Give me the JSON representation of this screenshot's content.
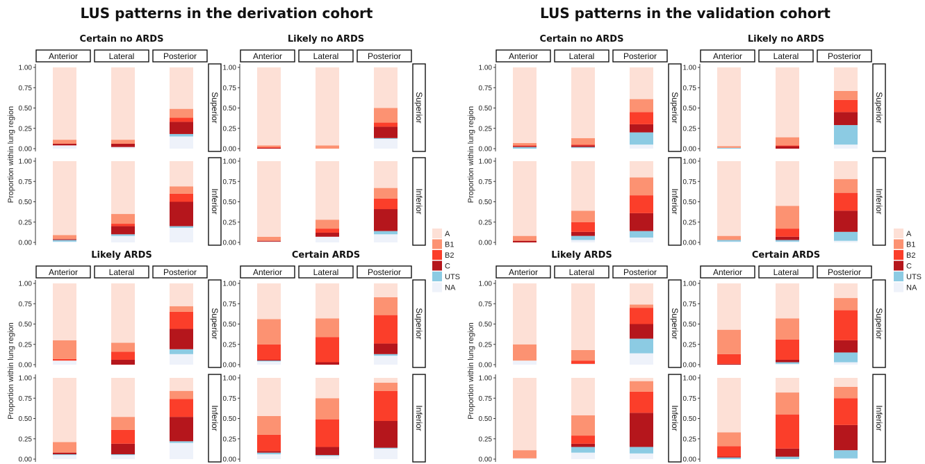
{
  "titles": [
    "LUS patterns in the derivation cohort",
    "LUS patterns in the validation cohort"
  ],
  "chart_data": {
    "type": "bar",
    "stacked": true,
    "y_axis_label": "Proportion within lung region",
    "ylim": [
      0,
      1
    ],
    "y_ticks": [
      "0.00",
      "0.25",
      "0.50",
      "0.75",
      "1.00"
    ],
    "columns": [
      "Anterior",
      "Lateral",
      "Posterior"
    ],
    "rows": [
      "Superior",
      "Inferior"
    ],
    "legend": {
      "position": "right",
      "categories": [
        "A",
        "B1",
        "B2",
        "C",
        "UTS",
        "NA"
      ],
      "colors": [
        "#fde0d6",
        "#fc9272",
        "#fb3e2a",
        "#b5161c",
        "#8ccbe3",
        "#eef2fa"
      ]
    },
    "stack_order_bottom_to_top": [
      "NA",
      "UTS",
      "C",
      "B2",
      "B1",
      "A"
    ],
    "value_note": "values are proportions per category in legend order A, B1, B2, C, UTS, NA",
    "cohorts": [
      {
        "name": "LUS patterns in the derivation cohort",
        "panels": [
          {
            "name": "Certain no ARDS",
            "values": {
              "Superior": {
                "Anterior": [
                  0.89,
                  0.05,
                  0,
                  0.02,
                  0,
                  0.04
                ],
                "Lateral": [
                  0.89,
                  0.05,
                  0,
                  0.04,
                  0,
                  0.02
                ],
                "Posterior": [
                  0.51,
                  0.11,
                  0.05,
                  0.15,
                  0.03,
                  0.15
                ]
              },
              "Inferior": {
                "Anterior": [
                  0.91,
                  0.05,
                  0,
                  0.01,
                  0.02,
                  0.01
                ],
                "Lateral": [
                  0.65,
                  0.12,
                  0.03,
                  0.1,
                  0.02,
                  0.08
                ],
                "Posterior": [
                  0.31,
                  0.09,
                  0.1,
                  0.3,
                  0.02,
                  0.18
                ]
              }
            }
          },
          {
            "name": "Likely no ARDS",
            "values": {
              "Superior": {
                "Anterior": [
                  0.96,
                  0.02,
                  0.01,
                  0.01,
                  0,
                  0
                ],
                "Lateral": [
                  0.96,
                  0.04,
                  0,
                  0,
                  0,
                  0
                ],
                "Posterior": [
                  0.5,
                  0.18,
                  0.05,
                  0.14,
                  0.01,
                  0.12
                ]
              },
              "Inferior": {
                "Anterior": [
                  0.93,
                  0.05,
                  0,
                  0.01,
                  0,
                  0.01
                ],
                "Lateral": [
                  0.72,
                  0.11,
                  0.05,
                  0.05,
                  0,
                  0.07
                ],
                "Posterior": [
                  0.33,
                  0.13,
                  0.13,
                  0.27,
                  0.04,
                  0.1
                ]
              }
            }
          },
          {
            "name": "Likely ARDS",
            "values": {
              "Superior": {
                "Anterior": [
                  0.7,
                  0.23,
                  0.02,
                  0,
                  0,
                  0.05
                ],
                "Lateral": [
                  0.73,
                  0.11,
                  0.1,
                  0.06,
                  0,
                  0
                ],
                "Posterior": [
                  0.28,
                  0.07,
                  0.21,
                  0.25,
                  0.06,
                  0.13
                ]
              },
              "Inferior": {
                "Anterior": [
                  0.79,
                  0.13,
                  0,
                  0.02,
                  0.01,
                  0.05
                ],
                "Lateral": [
                  0.48,
                  0.16,
                  0.17,
                  0.13,
                  0.01,
                  0.05
                ],
                "Posterior": [
                  0.16,
                  0.1,
                  0.22,
                  0.3,
                  0.02,
                  0.2
                ]
              }
            }
          },
          {
            "name": "Certain ARDS",
            "values": {
              "Superior": {
                "Anterior": [
                  0.44,
                  0.31,
                  0.19,
                  0.01,
                  0.01,
                  0.04
                ],
                "Lateral": [
                  0.43,
                  0.23,
                  0.31,
                  0.03,
                  0,
                  0
                ],
                "Posterior": [
                  0.17,
                  0.22,
                  0.35,
                  0.13,
                  0.02,
                  0.11
                ]
              },
              "Inferior": {
                "Anterior": [
                  0.47,
                  0.23,
                  0.2,
                  0.02,
                  0.02,
                  0.06
                ],
                "Lateral": [
                  0.25,
                  0.26,
                  0.34,
                  0.1,
                  0.01,
                  0.04
                ],
                "Posterior": [
                  0.06,
                  0.1,
                  0.37,
                  0.33,
                  0.01,
                  0.13
                ]
              }
            }
          }
        ]
      },
      {
        "name": "LUS patterns in the validation cohort",
        "panels": [
          {
            "name": "Certain no ARDS",
            "values": {
              "Superior": {
                "Anterior": [
                  0.93,
                  0.03,
                  0.01,
                  0.01,
                  0.02,
                  0
                ],
                "Lateral": [
                  0.87,
                  0.08,
                  0.01,
                  0.02,
                  0.01,
                  0.01
                ],
                "Posterior": [
                  0.39,
                  0.16,
                  0.15,
                  0.1,
                  0.15,
                  0.05
                ]
              },
              "Inferior": {
                "Anterior": [
                  0.92,
                  0.06,
                  0,
                  0.02,
                  0,
                  0
                ],
                "Lateral": [
                  0.61,
                  0.14,
                  0.12,
                  0.05,
                  0.05,
                  0.03
                ],
                "Posterior": [
                  0.2,
                  0.22,
                  0.22,
                  0.22,
                  0.08,
                  0.06
                ]
              }
            }
          },
          {
            "name": "Likely no ARDS",
            "values": {
              "Superior": {
                "Anterior": [
                  0.97,
                  0.02,
                  0,
                  0,
                  0.01,
                  0
                ],
                "Lateral": [
                  0.86,
                  0.1,
                  0.01,
                  0.03,
                  0,
                  0
                ],
                "Posterior": [
                  0.29,
                  0.11,
                  0.15,
                  0.16,
                  0.24,
                  0.05
                ]
              },
              "Inferior": {
                "Anterior": [
                  0.92,
                  0.05,
                  0,
                  0,
                  0.02,
                  0.01
                ],
                "Lateral": [
                  0.55,
                  0.28,
                  0.1,
                  0.04,
                  0.02,
                  0.01
                ],
                "Posterior": [
                  0.22,
                  0.17,
                  0.22,
                  0.26,
                  0.11,
                  0.02
                ]
              }
            }
          },
          {
            "name": "Likely ARDS",
            "values": {
              "Superior": {
                "Anterior": [
                  0.75,
                  0.2,
                  0,
                  0,
                  0,
                  0.05
                ],
                "Lateral": [
                  0.82,
                  0.13,
                  0.04,
                  0,
                  0,
                  0.01
                ],
                "Posterior": [
                  0.26,
                  0.04,
                  0.2,
                  0.18,
                  0.18,
                  0.14
                ]
              },
              "Inferior": {
                "Anterior": [
                  0.89,
                  0.1,
                  0,
                  0,
                  0,
                  0.01
                ],
                "Lateral": [
                  0.46,
                  0.25,
                  0.1,
                  0.04,
                  0.07,
                  0.08
                ],
                "Posterior": [
                  0.04,
                  0.13,
                  0.26,
                  0.42,
                  0.08,
                  0.07
                ]
              }
            }
          },
          {
            "name": "Certain ARDS",
            "values": {
              "Superior": {
                "Anterior": [
                  0.57,
                  0.3,
                  0.12,
                  0.01,
                  0,
                  0
                ],
                "Lateral": [
                  0.43,
                  0.26,
                  0.25,
                  0.03,
                  0.02,
                  0.01
                ],
                "Posterior": [
                  0.18,
                  0.15,
                  0.37,
                  0.15,
                  0.12,
                  0.03
                ]
              },
              "Inferior": {
                "Anterior": [
                  0.67,
                  0.17,
                  0.13,
                  0.01,
                  0.02,
                  0
                ],
                "Lateral": [
                  0.18,
                  0.27,
                  0.42,
                  0.1,
                  0.03,
                  0
                ],
                "Posterior": [
                  0.11,
                  0.14,
                  0.33,
                  0.31,
                  0.1,
                  0.01
                ]
              }
            }
          }
        ]
      }
    ]
  }
}
